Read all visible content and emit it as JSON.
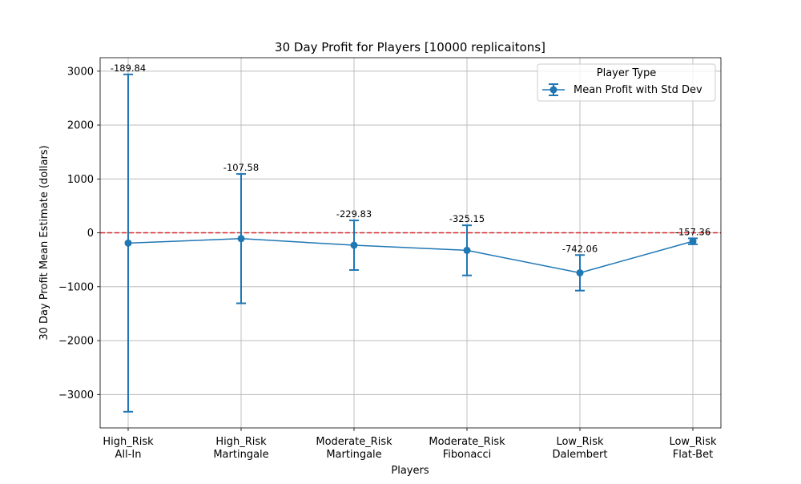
{
  "chart_data": {
    "type": "line",
    "title": "30 Day Profit for Players [10000 replicaitons]",
    "xlabel": "Players",
    "ylabel": "30 Day Profit Mean Estimate (dollars)",
    "categories": [
      [
        "High_Risk",
        "All-In"
      ],
      [
        "High_Risk",
        "Martingale"
      ],
      [
        "Moderate_Risk",
        "Martingale"
      ],
      [
        "Moderate_Risk",
        "Fibonacci"
      ],
      [
        "Low_Risk",
        "Dalembert"
      ],
      [
        "Low_Risk",
        "Flat-Bet"
      ]
    ],
    "series": [
      {
        "name": "Mean Profit with Std Dev",
        "values": [
          -189.84,
          -107.58,
          -229.83,
          -325.15,
          -742.06,
          -157.36
        ],
        "std_dev": [
          3130,
          1200,
          460,
          465,
          330,
          55
        ],
        "labels": [
          "-189.84",
          "-107.58",
          "-229.83",
          "-325.15",
          "-742.06",
          "-157.36"
        ],
        "color": "#1f77b4"
      }
    ],
    "reference_line": {
      "y": 0,
      "color": "#d62728",
      "style": "dashed"
    },
    "ylim": [
      -3620,
      3250
    ],
    "yticks": [
      3000,
      2000,
      1000,
      0,
      -1000,
      -2000,
      -3000
    ],
    "ytick_labels": [
      "3000",
      "2000",
      "1000",
      "0",
      "−1000",
      "−2000",
      "−3000"
    ],
    "legend": {
      "title": "Player Type",
      "placement": "top-right"
    },
    "grid": true
  }
}
